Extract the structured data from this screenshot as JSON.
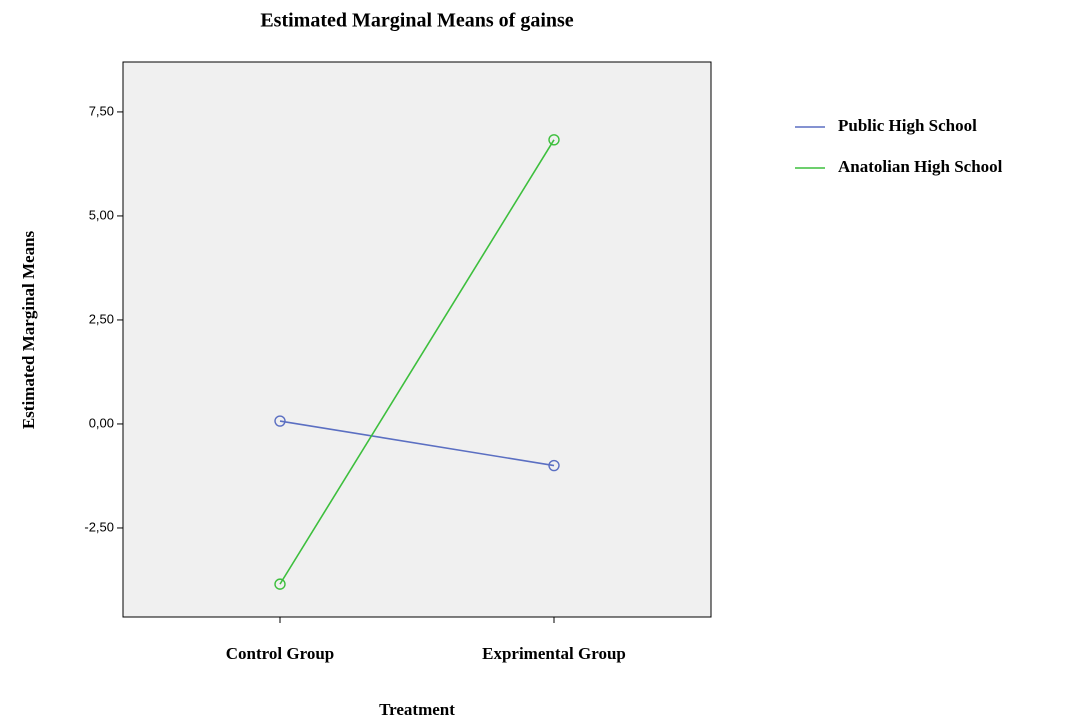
{
  "chart_data": {
    "type": "line",
    "title": "Estimated Marginal Means of gainse",
    "x_label": "Treatment",
    "y_label": "Estimated Marginal Means",
    "categories": [
      "Control Group",
      "Exprimental Group"
    ],
    "series": [
      {
        "name": "Public High School",
        "color": "#5b6fc2",
        "values": [
          0.07,
          -1.0
        ]
      },
      {
        "name": "Anatolian High School",
        "color": "#3dbf3d",
        "values": [
          -3.85,
          6.83
        ]
      }
    ],
    "ylim": [
      -4.64,
      8.7
    ],
    "yticks": [
      {
        "value": -2.5,
        "label": "-2,50"
      },
      {
        "value": 0,
        "label": "0,00"
      },
      {
        "value": 2.5,
        "label": "2,50"
      },
      {
        "value": 5,
        "label": "5,00"
      },
      {
        "value": 7.5,
        "label": "7,50"
      }
    ]
  }
}
